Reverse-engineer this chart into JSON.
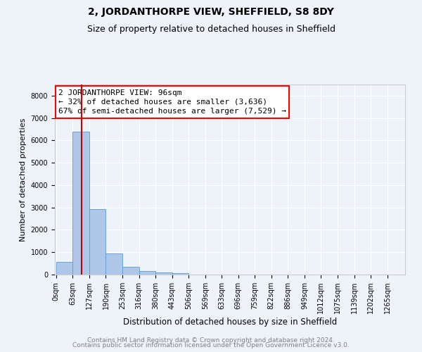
{
  "title": "2, JORDANTHORPE VIEW, SHEFFIELD, S8 8DY",
  "subtitle": "Size of property relative to detached houses in Sheffield",
  "xlabel": "Distribution of detached houses by size in Sheffield",
  "ylabel": "Number of detached properties",
  "bins": [
    "0sqm",
    "63sqm",
    "127sqm",
    "190sqm",
    "253sqm",
    "316sqm",
    "380sqm",
    "443sqm",
    "506sqm",
    "569sqm",
    "633sqm",
    "696sqm",
    "759sqm",
    "822sqm",
    "886sqm",
    "949sqm",
    "1012sqm",
    "1075sqm",
    "1139sqm",
    "1202sqm",
    "1265sqm"
  ],
  "bar_heights": [
    570,
    6380,
    2940,
    960,
    360,
    155,
    105,
    65,
    0,
    0,
    0,
    0,
    0,
    0,
    0,
    0,
    0,
    0,
    0,
    0
  ],
  "bar_color": "#aec6e8",
  "bar_edge_color": "#5b9bd5",
  "annotation_line1": "2 JORDANTHORPE VIEW: 96sqm",
  "annotation_line2": "← 32% of detached houses are smaller (3,636)",
  "annotation_line3": "67% of semi-detached houses are larger (7,529) →",
  "vline_x": 96,
  "vline_color": "#cc0000",
  "ylim": [
    0,
    8500
  ],
  "yticks": [
    0,
    1000,
    2000,
    3000,
    4000,
    5000,
    6000,
    7000,
    8000
  ],
  "footer_line1": "Contains HM Land Registry data © Crown copyright and database right 2024.",
  "footer_line2": "Contains public sector information licensed under the Open Government Licence v3.0.",
  "background_color": "#eef2f9",
  "plot_background": "#eef2f9",
  "grid_color": "#ffffff",
  "title_fontsize": 10,
  "subtitle_fontsize": 9,
  "xlabel_fontsize": 8.5,
  "ylabel_fontsize": 8,
  "tick_fontsize": 7,
  "footer_fontsize": 6.5,
  "annotation_fontsize": 8
}
